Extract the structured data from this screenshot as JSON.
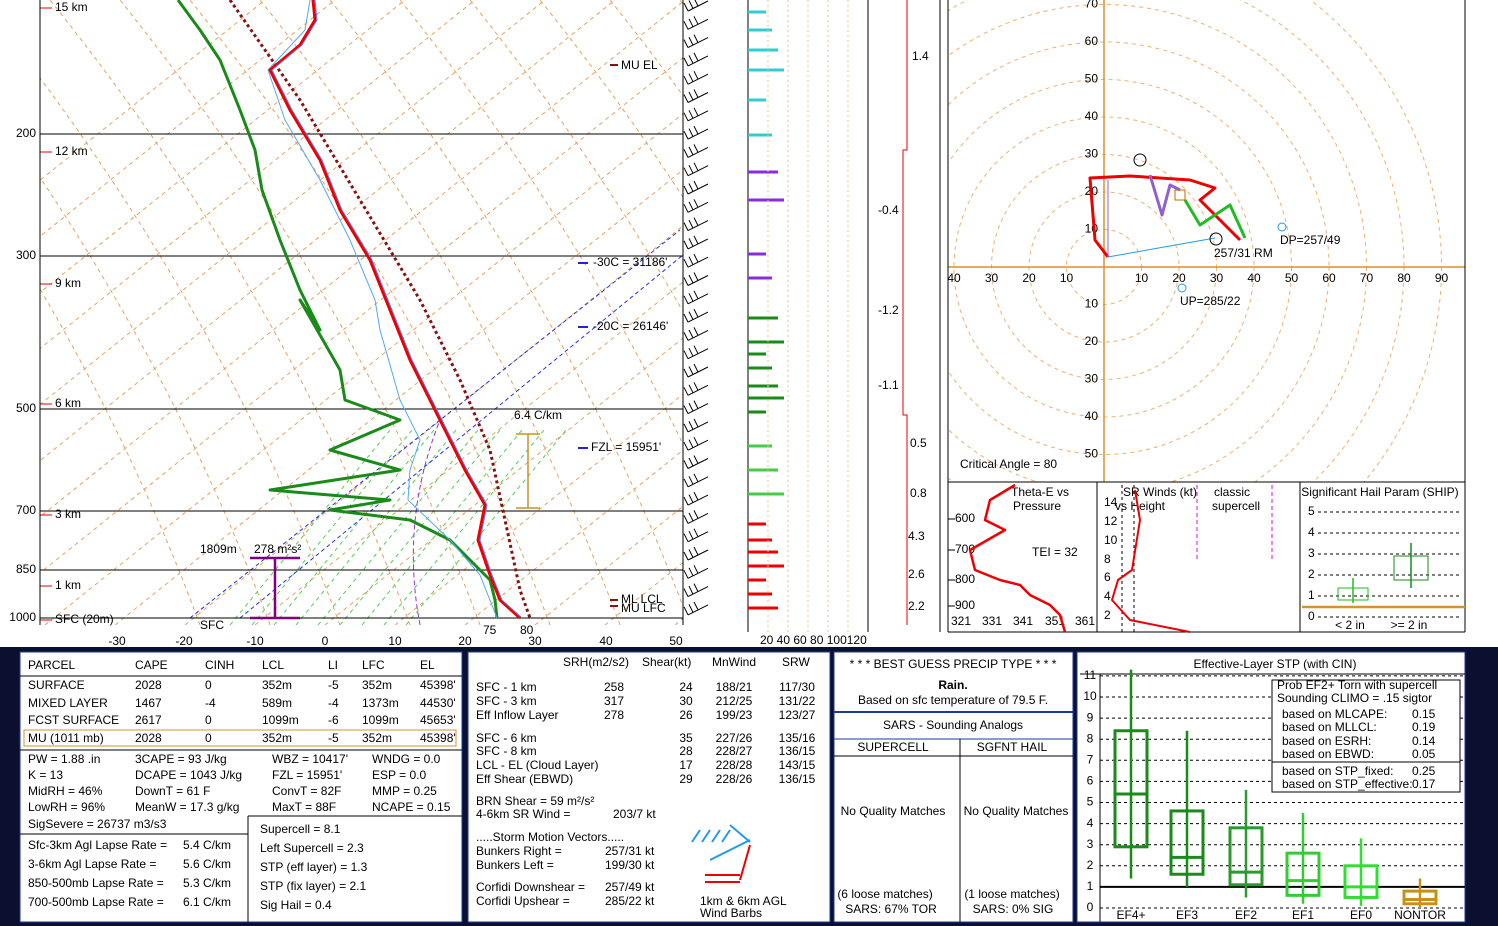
{
  "skewt": {
    "pressure_labels": [
      "200",
      "300",
      "500",
      "700",
      "850",
      "1000"
    ],
    "temp_labels": [
      "-30",
      "-20",
      "-10",
      "0",
      "10",
      "20",
      "30",
      "40",
      "50"
    ],
    "height_labels": [
      "15 km",
      "12 km",
      "9 km",
      "6 km",
      "3 km",
      "1 km",
      "SFC (20m)"
    ],
    "annotations": {
      "mu_el": "MU EL",
      "m30c": "-30C = 31186'",
      "m20c": "-20C = 26146'",
      "fzl": "FZL = 15951'",
      "lapse": "6.4 C/km",
      "ml_lcl": "ML LCL",
      "mu_lfc": "MU LFC",
      "sfc": "SFC",
      "depth": "1809m",
      "srh": "278 m²s²",
      "t75": "75",
      "t80": "80"
    }
  },
  "wind_speed_scale": "20 40 60 80 100120",
  "column_values": [
    "1.4",
    "-0.4",
    "-1.2",
    "-1.1",
    "0.5",
    "0.8",
    "4.3",
    "2.6",
    "2.2"
  ],
  "hodograph": {
    "up_labels": [
      "10",
      "20",
      "30",
      "40",
      "50",
      "60",
      "70"
    ],
    "down_labels": [
      "10",
      "20",
      "30",
      "40",
      "50"
    ],
    "left_labels": [
      "10",
      "20",
      "30",
      "40"
    ],
    "right_labels": [
      "10",
      "20",
      "30",
      "40",
      "50",
      "60",
      "70",
      "80",
      "90"
    ],
    "critical_angle": "Critical Angle = 80",
    "rm": "257/31 RM",
    "dp": "DP=257/49",
    "up": "UP=285/22"
  },
  "theta_e": {
    "title_1": "Theta-E vs",
    "title_2": "Pressure",
    "tei": "TEI = 32",
    "y_labels": [
      "600",
      "700",
      "800",
      "900"
    ],
    "x_labels": [
      "321",
      "331",
      "341",
      "351",
      "361"
    ]
  },
  "sr_winds": {
    "title_1": "SR Winds (kt)",
    "title_2": "vs Height",
    "classic_1": "classic",
    "classic_2": "supercell",
    "y_labels": [
      "14",
      "12",
      "10",
      "8",
      "6",
      "4",
      "2"
    ]
  },
  "ship": {
    "title": "Significant Hail Param (SHIP)",
    "y_labels": [
      "5",
      "4",
      "3",
      "2",
      "1",
      "0"
    ],
    "x_labels": [
      "< 2 in",
      ">= 2 in"
    ]
  },
  "parcel_table": {
    "header": [
      "PARCEL",
      "CAPE",
      "CINH",
      "LCL",
      "LI",
      "LFC",
      "EL"
    ],
    "rows": [
      [
        "SURFACE",
        "2028",
        "0",
        "352m",
        "-5",
        "352m",
        "45398'"
      ],
      [
        "MIXED LAYER",
        "1467",
        "-4",
        "589m",
        "-4",
        "1373m",
        "44530'"
      ],
      [
        "FCST SURFACE",
        "2617",
        "0",
        "1099m",
        "-6",
        "1099m",
        "45653'"
      ],
      [
        "MU    (1011 mb)",
        "2028",
        "0",
        "352m",
        "-5",
        "352m",
        "45398'"
      ]
    ]
  },
  "indices": [
    [
      "PW = 1.88 .in",
      "3CAPE = 93 J/kg",
      "WBZ = 10417'",
      "WNDG = 0.0"
    ],
    [
      "K = 13",
      "DCAPE = 1043 J/kg",
      "FZL = 15951'",
      "ESP = 0.0"
    ],
    [
      "MidRH = 46%",
      "DownT = 61 F",
      "ConvT = 82F",
      "MMP = 0.25"
    ],
    [
      "LowRH = 96%",
      "MeanW = 17.3 g/kg",
      "MaxT = 88F",
      "NCAPE = 0.15"
    ]
  ],
  "sig_severe": "SigSevere = 26737 m3/s3",
  "lapse_rates": [
    [
      "Sfc-3km Agl Lapse Rate =",
      "5.4 C/km"
    ],
    [
      "3-6km Agl Lapse Rate =",
      "5.6 C/km"
    ],
    [
      "850-500mb Lapse Rate =",
      "5.3 C/km"
    ],
    [
      "700-500mb Lapse Rate =",
      "6.1 C/km"
    ]
  ],
  "composites": [
    "Supercell = 8.1",
    "Left Supercell = 2.3",
    "STP (eff layer) = 1.3",
    "STP (fix layer) = 2.1",
    "Sig Hail = 0.4"
  ],
  "kinematics": {
    "header": [
      "SRH(m2/s2)",
      "Shear(kt)",
      "MnWind",
      "SRW"
    ],
    "rows": [
      [
        "SFC - 1 km",
        "258",
        "24",
        "188/21",
        "117/30"
      ],
      [
        "SFC - 3 km",
        "317",
        "30",
        "212/25",
        "131/22"
      ],
      [
        "Eff Inflow Layer",
        "278",
        "26",
        "199/23",
        "123/27"
      ],
      [
        "SFC - 6 km",
        "",
        "35",
        "227/26",
        "135/16"
      ],
      [
        "SFC - 8 km",
        "",
        "28",
        "228/27",
        "136/15"
      ],
      [
        "LCL - EL (Cloud Layer)",
        "",
        "17",
        "228/28",
        "143/15"
      ],
      [
        "Eff Shear (EBWD)",
        "",
        "29",
        "228/26",
        "136/15"
      ]
    ],
    "brn": "BRN Shear =  59 m²/s²",
    "sr46_label": "4-6km SR Wind =",
    "sr46_value": "203/7 kt",
    "motion_header": ".....Storm Motion Vectors.....",
    "motion": [
      [
        "Bunkers Right =",
        "257/31 kt"
      ],
      [
        "Bunkers Left =",
        "199/30 kt"
      ],
      [
        "Corfidi Downshear =",
        "257/49 kt"
      ],
      [
        "Corfidi Upshear =",
        "285/22 kt"
      ]
    ],
    "barb_legend_1": "1km & 6km AGL",
    "barb_legend_2": "Wind Barbs"
  },
  "precip": {
    "header": "* * * BEST GUESS PRECIP TYPE * * *",
    "type": "Rain.",
    "basis": "Based on sfc temperature of 79.5 F."
  },
  "sars": {
    "title": "SARS - Sounding Analogs",
    "supercell": "SUPERCELL",
    "hail": "SGFNT HAIL",
    "sc_matches": "No Quality Matches",
    "hail_matches": "No Quality Matches",
    "sc_loose": "(6 loose matches)",
    "sc_result": "SARS:  67% TOR",
    "hail_loose": "(1 loose matches)",
    "hail_result": "SARS:  0% SIG"
  },
  "stp": {
    "title": "Effective-Layer STP (with CIN)",
    "y_labels": [
      "11",
      "10",
      "9",
      "8",
      "7",
      "6",
      "5",
      "4",
      "3",
      "2",
      "1",
      "0"
    ],
    "categories": [
      "EF4+",
      "EF3",
      "EF2",
      "EF1",
      "EF0",
      "NONTOR"
    ],
    "prob_1": "Prob EF2+ Torn with supercell",
    "prob_2": "Sounding CLIMO = .15 sigtor",
    "based": [
      [
        "based on MLCAPE:",
        "0.15"
      ],
      [
        "based on MLLCL:",
        "0.19"
      ],
      [
        "based on ESRH:",
        "0.14"
      ],
      [
        "based on EBWD:",
        "0.05"
      ],
      [
        "based on STP_fixed:",
        "0.25"
      ],
      [
        "based on STP_effective:",
        "0.17"
      ]
    ]
  }
}
